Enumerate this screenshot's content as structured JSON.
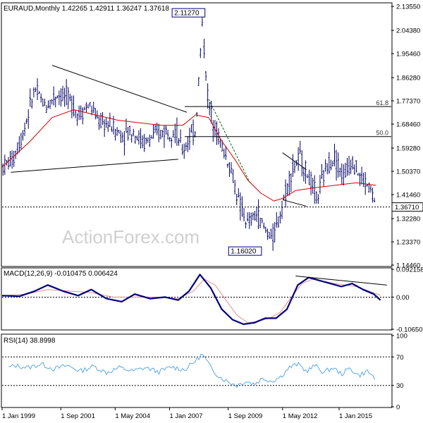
{
  "colors": {
    "bars": "#000066",
    "sma": "#d40000",
    "macd": "#000080",
    "signal": "#e09090",
    "rsi": "#5aa9e6",
    "grid": "#000000",
    "label_box_border": "#000080"
  },
  "watermark": "ActionForex.com",
  "chart_data": [
    {
      "type": "ohlc",
      "panel": "price",
      "header": "EURAUD,Monthly  1.42265 1.42911 1.36247 1.37618",
      "ylim": [
        1.1446,
        2.144
      ],
      "y_ticks": [
        "2.13550",
        "2.04380",
        "1.95460",
        "1.86280",
        "1.77370",
        "1.68460",
        "1.59280",
        "1.50370",
        "1.41460",
        "1.32280",
        "1.23370",
        "1.14460"
      ],
      "current_price": "1.36710",
      "high_label": "2.11270",
      "low_label": "1.16020",
      "fib_levels": [
        {
          "label": "61.8",
          "value": 1.752
        },
        {
          "label": "50.0",
          "value": 1.637
        }
      ],
      "x_ticks": [
        "1 Jan 1999",
        "1 Sep 2001",
        "1 May 2004",
        "1 Jan 2007",
        "1 Sep 2009",
        "1 May 2012",
        "1 Jan 2015"
      ],
      "trendlines": [
        {
          "from": [
            1999.1,
            1.5
          ],
          "to": [
            2006.8,
            1.55
          ]
        },
        {
          "from": [
            2001.0,
            1.91
          ],
          "to": [
            2007.2,
            1.73
          ]
        },
        {
          "from": [
            2011.6,
            1.575
          ],
          "to": [
            2012.7,
            1.51
          ]
        },
        {
          "from": [
            2011.6,
            1.395
          ],
          "to": [
            2012.7,
            1.37
          ]
        }
      ],
      "dashed_line": {
        "from": [
          2008.2,
          1.78
        ],
        "to": [
          2010.1,
          1.46
        ]
      },
      "series": [
        {
          "name": "price",
          "x": [
            1998.7,
            1999.2,
            1999.7,
            2000.2,
            2000.7,
            2001.2,
            2001.7,
            2002.2,
            2002.7,
            2003.2,
            2003.7,
            2004.2,
            2004.7,
            2005.2,
            2005.7,
            2006.2,
            2006.7,
            2007.0,
            2007.3,
            2007.6,
            2007.9,
            2008.2,
            2008.5,
            2008.8,
            2009.2,
            2009.6,
            2010.0,
            2010.4,
            2010.8,
            2011.2,
            2011.6,
            2012.0,
            2012.4,
            2012.8,
            2013.2,
            2013.6,
            2014.0,
            2014.4,
            2014.8,
            2015.2,
            2015.6,
            2015.9
          ],
          "values": [
            1.52,
            1.55,
            1.66,
            1.82,
            1.75,
            1.8,
            1.79,
            1.72,
            1.76,
            1.69,
            1.68,
            1.64,
            1.66,
            1.61,
            1.64,
            1.66,
            1.66,
            1.58,
            1.63,
            1.66,
            2.07,
            1.75,
            1.68,
            1.6,
            1.52,
            1.38,
            1.3,
            1.34,
            1.28,
            1.25,
            1.38,
            1.5,
            1.56,
            1.48,
            1.4,
            1.52,
            1.56,
            1.48,
            1.55,
            1.48,
            1.44,
            1.376
          ]
        },
        {
          "name": "sma",
          "x": [
            1998.7,
            2000.0,
            2001.0,
            2002.0,
            2003.0,
            2004.0,
            2005.0,
            2006.0,
            2007.0,
            2007.6,
            2008.2,
            2008.8,
            2009.4,
            2010.0,
            2010.6,
            2011.2,
            2011.6,
            2012.2,
            2013.0,
            2014.0,
            2015.0,
            2015.9
          ],
          "values": [
            1.52,
            1.62,
            1.71,
            1.74,
            1.72,
            1.7,
            1.69,
            1.68,
            1.68,
            1.72,
            1.71,
            1.62,
            1.55,
            1.47,
            1.42,
            1.39,
            1.4,
            1.43,
            1.44,
            1.45,
            1.46,
            1.45
          ]
        }
      ]
    },
    {
      "type": "line",
      "panel": "macd",
      "header": "MACD(12,26,9) -0.010475 0.006424",
      "ylim": [
        -0.1065,
        0.0922
      ],
      "y_ticks": [
        "0.092158",
        "0.00",
        "-0.106503"
      ],
      "trendline": {
        "from": [
          2012.2,
          0.07
        ],
        "to": [
          2016.4,
          0.04
        ]
      },
      "series": [
        {
          "name": "macd",
          "x": [
            1998.7,
            1999.5,
            2000.2,
            2000.8,
            2001.5,
            2002.2,
            2002.8,
            2003.5,
            2004.2,
            2004.8,
            2005.5,
            2006.2,
            2006.8,
            2007.3,
            2007.8,
            2008.3,
            2008.8,
            2009.3,
            2009.8,
            2010.3,
            2010.8,
            2011.3,
            2011.8,
            2012.3,
            2012.8,
            2013.3,
            2013.8,
            2014.3,
            2014.8,
            2015.3,
            2015.8,
            2016.1
          ],
          "values": [
            0.005,
            0.003,
            0.02,
            0.04,
            0.02,
            0.005,
            0.025,
            -0.005,
            -0.015,
            0.01,
            -0.005,
            0.0,
            -0.01,
            0.02,
            0.075,
            0.03,
            -0.04,
            -0.075,
            -0.09,
            -0.085,
            -0.07,
            -0.07,
            -0.04,
            0.04,
            0.065,
            0.055,
            0.045,
            0.035,
            0.045,
            0.025,
            0.01,
            -0.01
          ]
        },
        {
          "name": "signal",
          "x": [
            1998.7,
            1999.8,
            2000.8,
            2001.8,
            2002.8,
            2003.8,
            2004.8,
            2005.8,
            2006.8,
            2007.5,
            2008.0,
            2008.5,
            2009.0,
            2009.5,
            2010.0,
            2010.5,
            2011.0,
            2011.5,
            2012.0,
            2012.5,
            2013.0,
            2014.0,
            2015.0,
            2016.1
          ],
          "values": [
            0.005,
            0.01,
            0.025,
            0.02,
            0.015,
            0.0,
            0.0,
            0.0,
            -0.005,
            0.02,
            0.06,
            0.04,
            -0.01,
            -0.06,
            -0.085,
            -0.08,
            -0.07,
            -0.05,
            0.0,
            0.045,
            0.06,
            0.045,
            0.035,
            0.006
          ]
        }
      ]
    },
    {
      "type": "line",
      "panel": "rsi",
      "header": "RSI(14) 38.8998",
      "ylim": [
        0,
        100
      ],
      "y_ticks": [
        "100",
        "70",
        "30",
        "0"
      ],
      "levels": [
        70,
        30
      ],
      "series": [
        {
          "name": "rsi",
          "x": [
            1998.7,
            1999.3,
            1999.9,
            2000.5,
            2001.1,
            2001.7,
            2002.3,
            2002.9,
            2003.5,
            2004.1,
            2004.7,
            2005.3,
            2005.9,
            2006.5,
            2007.1,
            2007.5,
            2007.9,
            2008.3,
            2008.7,
            2009.1,
            2009.5,
            2009.9,
            2010.3,
            2010.7,
            2011.1,
            2011.5,
            2011.9,
            2012.3,
            2012.7,
            2013.1,
            2013.5,
            2013.9,
            2014.3,
            2014.7,
            2015.1,
            2015.5,
            2015.9
          ],
          "values": [
            52,
            58,
            55,
            60,
            53,
            58,
            50,
            57,
            48,
            55,
            50,
            55,
            49,
            56,
            52,
            62,
            74,
            55,
            42,
            35,
            30,
            36,
            32,
            40,
            36,
            42,
            55,
            60,
            50,
            58,
            48,
            55,
            46,
            54,
            44,
            50,
            38.9
          ]
        }
      ]
    }
  ]
}
